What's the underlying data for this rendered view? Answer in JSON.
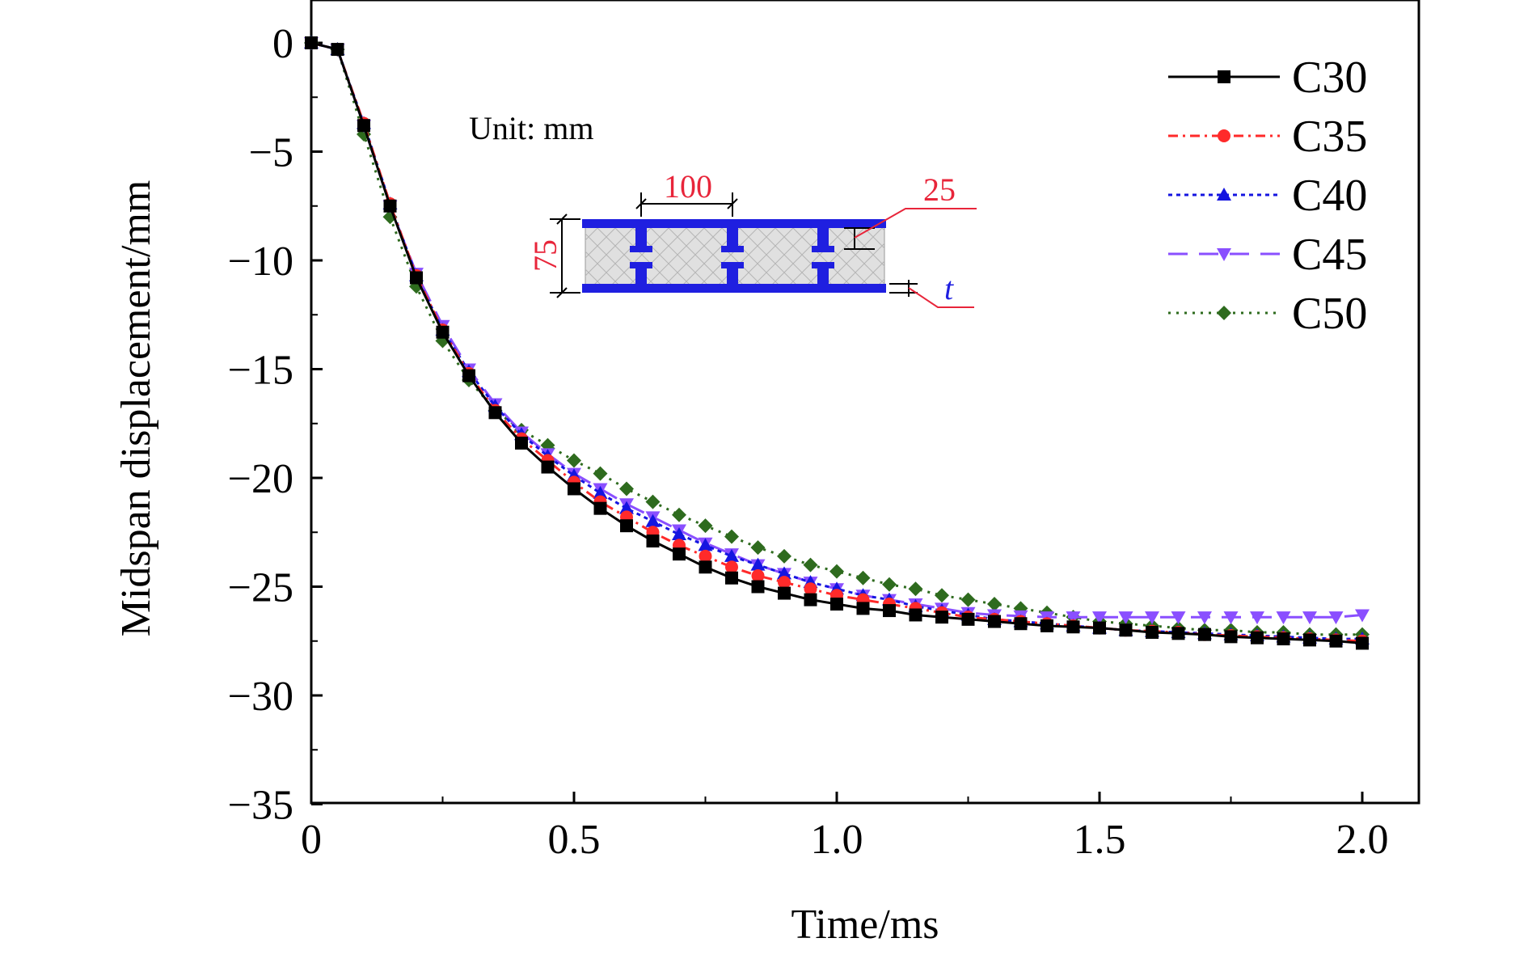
{
  "chart_data": {
    "type": "line",
    "xlabel": "Time/ms",
    "ylabel": "Midspan displacement/mm",
    "xlim": [
      0,
      2.1
    ],
    "ylim": [
      -35,
      2
    ],
    "xticks": [
      0,
      0.5,
      1.0,
      1.5,
      2.0
    ],
    "xtick_labels": [
      "0",
      "0.5",
      "1.0",
      "1.5",
      "2.0"
    ],
    "yticks": [
      0,
      -5,
      -10,
      -15,
      -20,
      -25,
      -30,
      -35
    ],
    "ytick_labels": [
      "0",
      "−5",
      "−10",
      "−15",
      "−20",
      "−25",
      "−30",
      "−35"
    ],
    "grid": false,
    "legend_position": "top-right",
    "x": [
      0,
      0.05,
      0.1,
      0.15,
      0.2,
      0.25,
      0.3,
      0.35,
      0.4,
      0.45,
      0.5,
      0.55,
      0.6,
      0.65,
      0.7,
      0.75,
      0.8,
      0.85,
      0.9,
      0.95,
      1.0,
      1.05,
      1.1,
      1.15,
      1.2,
      1.25,
      1.3,
      1.35,
      1.4,
      1.45,
      1.5,
      1.55,
      1.6,
      1.65,
      1.7,
      1.75,
      1.8,
      1.85,
      1.9,
      1.95,
      2.0
    ],
    "series": [
      {
        "name": "C30",
        "color": "#000000",
        "dash": "",
        "marker": "square",
        "values": [
          0,
          -0.3,
          -3.8,
          -7.5,
          -10.8,
          -13.3,
          -15.3,
          -17.0,
          -18.4,
          -19.5,
          -20.5,
          -21.4,
          -22.2,
          -22.9,
          -23.5,
          -24.1,
          -24.6,
          -25.0,
          -25.3,
          -25.6,
          -25.8,
          -26.0,
          -26.1,
          -26.3,
          -26.4,
          -26.5,
          -26.6,
          -26.7,
          -26.8,
          -26.85,
          -26.9,
          -27.0,
          -27.1,
          -27.15,
          -27.2,
          -27.3,
          -27.35,
          -27.4,
          -27.45,
          -27.5,
          -27.6
        ]
      },
      {
        "name": "C35",
        "color": "#ff2a2a",
        "dash": "12,6,3,6",
        "marker": "circle",
        "values": [
          0,
          -0.3,
          -3.7,
          -7.4,
          -10.7,
          -13.2,
          -15.2,
          -16.9,
          -18.2,
          -19.2,
          -20.2,
          -21.1,
          -21.8,
          -22.5,
          -23.1,
          -23.6,
          -24.1,
          -24.5,
          -24.8,
          -25.1,
          -25.4,
          -25.6,
          -25.8,
          -26.0,
          -26.2,
          -26.4,
          -26.5,
          -26.6,
          -26.7,
          -26.8,
          -26.9,
          -27.0,
          -27.05,
          -27.1,
          -27.2,
          -27.25,
          -27.3,
          -27.35,
          -27.4,
          -27.45,
          -27.5
        ]
      },
      {
        "name": "C40",
        "color": "#1515e0",
        "dash": "5,5",
        "marker": "triangle-up",
        "values": [
          0,
          -0.3,
          -3.7,
          -7.4,
          -10.7,
          -13.2,
          -15.1,
          -16.7,
          -18.0,
          -19.0,
          -19.9,
          -20.7,
          -21.4,
          -22.0,
          -22.6,
          -23.1,
          -23.6,
          -24.0,
          -24.4,
          -24.8,
          -25.1,
          -25.4,
          -25.6,
          -25.9,
          -26.1,
          -26.3,
          -26.5,
          -26.6,
          -26.7,
          -26.8,
          -26.9,
          -27.0,
          -27.05,
          -27.1,
          -27.15,
          -27.2,
          -27.25,
          -27.3,
          -27.35,
          -27.4,
          -27.4
        ]
      },
      {
        "name": "C45",
        "color": "#8a4fff",
        "dash": "24,14",
        "marker": "triangle-down",
        "values": [
          0,
          -0.3,
          -3.8,
          -7.5,
          -10.6,
          -13.0,
          -15.0,
          -16.6,
          -17.9,
          -18.9,
          -19.8,
          -20.5,
          -21.2,
          -21.8,
          -22.4,
          -23.0,
          -23.5,
          -24.0,
          -24.4,
          -24.8,
          -25.1,
          -25.4,
          -25.6,
          -25.8,
          -26.0,
          -26.2,
          -26.3,
          -26.35,
          -26.4,
          -26.4,
          -26.4,
          -26.4,
          -26.4,
          -26.4,
          -26.4,
          -26.4,
          -26.4,
          -26.4,
          -26.4,
          -26.4,
          -26.3
        ]
      },
      {
        "name": "C50",
        "color": "#2e6b1e",
        "dash": "3,7",
        "marker": "diamond",
        "values": [
          0,
          -0.3,
          -4.2,
          -8.0,
          -11.2,
          -13.7,
          -15.5,
          -16.9,
          -17.8,
          -18.5,
          -19.2,
          -19.8,
          -20.5,
          -21.1,
          -21.7,
          -22.2,
          -22.7,
          -23.2,
          -23.6,
          -24.0,
          -24.3,
          -24.6,
          -24.9,
          -25.1,
          -25.4,
          -25.6,
          -25.8,
          -26.0,
          -26.2,
          -26.4,
          -26.6,
          -26.7,
          -26.8,
          -26.9,
          -27.0,
          -27.0,
          -27.1,
          -27.1,
          -27.2,
          -27.2,
          -27.2
        ]
      }
    ],
    "annotations": {
      "unit_label": "Unit: mm",
      "width_label": "100",
      "height_label": "75",
      "web_label": "25",
      "thickness_label": "t"
    }
  }
}
